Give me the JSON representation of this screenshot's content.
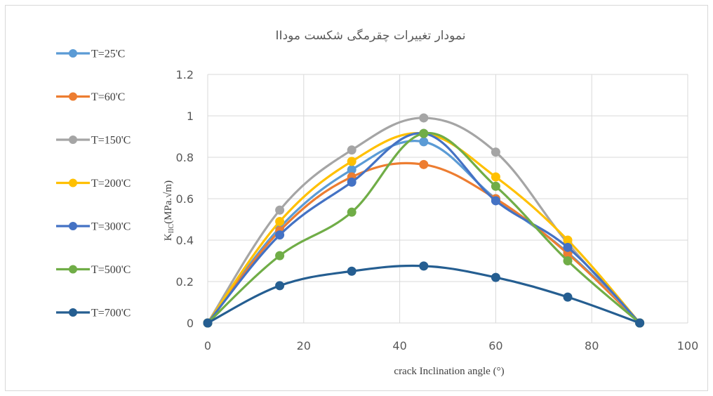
{
  "chart_data": {
    "type": "line",
    "title": "نمودار تغییرات چقرمگی شکست مودII",
    "xlabel": "crack Inclination angle (°)",
    "ylabel": {
      "main": "K",
      "sub": "IIC",
      "rest": "(MPa.√m)"
    },
    "xlim": [
      0,
      100
    ],
    "ylim": [
      0,
      1.2
    ],
    "xticks": [
      0,
      20,
      40,
      60,
      80,
      100
    ],
    "yticks": [
      0,
      0.2,
      0.4,
      0.6,
      0.8,
      1,
      1.2
    ],
    "grid": true,
    "legend_position": "left",
    "x": [
      0,
      15,
      30,
      45,
      60,
      75,
      90
    ],
    "series": [
      {
        "name": "T=25'C",
        "color": "#5B9BD5",
        "values": [
          0,
          0.46,
          0.74,
          0.875,
          0.6,
          0.34,
          0
        ]
      },
      {
        "name": "T=60'C",
        "color": "#ED7D31",
        "values": [
          0,
          0.445,
          0.705,
          0.765,
          0.6,
          0.335,
          0
        ]
      },
      {
        "name": "T=150'C",
        "color": "#A5A5A5",
        "values": [
          0,
          0.545,
          0.835,
          0.99,
          0.825,
          0.385,
          0
        ]
      },
      {
        "name": "T=200'C",
        "color": "#FFC000",
        "values": [
          0,
          0.49,
          0.78,
          0.915,
          0.705,
          0.4,
          0
        ]
      },
      {
        "name": "T=300'C",
        "color": "#4472C4",
        "values": [
          0,
          0.425,
          0.68,
          0.915,
          0.59,
          0.365,
          0
        ]
      },
      {
        "name": "T=500'C",
        "color": "#70AD47",
        "values": [
          0,
          0.325,
          0.535,
          0.915,
          0.66,
          0.3,
          0
        ]
      },
      {
        "name": "T=700'C",
        "color": "#255E91",
        "values": [
          0,
          0.18,
          0.25,
          0.275,
          0.22,
          0.125,
          0
        ]
      }
    ]
  }
}
